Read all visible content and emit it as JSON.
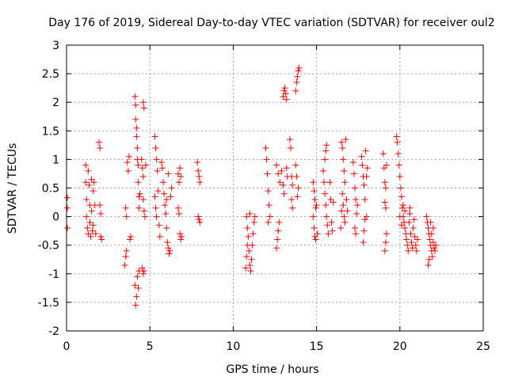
{
  "chart_data": {
    "type": "scatter",
    "title": "Day 176 of 2019, Sidereal Day-to-day VTEC variation (SDTVAR) for receiver oul2",
    "xlabel": "GPS time / hours",
    "ylabel": "SDTVAR / TECUs",
    "xlim": [
      0,
      25
    ],
    "ylim": [
      -2,
      3
    ],
    "xticks": [
      0,
      5,
      10,
      15,
      20,
      25
    ],
    "yticks": [
      -2,
      -1.5,
      -1,
      -0.5,
      0,
      0.5,
      1,
      1.5,
      2,
      2.5,
      3
    ],
    "grid": true,
    "marker": "+",
    "color": "#ff0000",
    "series": [
      {
        "name": "SDTVAR",
        "points": [
          [
            0.05,
            0.33
          ],
          [
            0.05,
            0.15
          ],
          [
            0.05,
            -0.2
          ],
          [
            1.15,
            0.9
          ],
          [
            1.15,
            0.6
          ],
          [
            1.2,
            0.3
          ],
          [
            1.2,
            0.0
          ],
          [
            1.25,
            -0.2
          ],
          [
            1.3,
            -0.3
          ],
          [
            1.3,
            0.8
          ],
          [
            1.35,
            0.55
          ],
          [
            1.4,
            0.2
          ],
          [
            1.4,
            -0.1
          ],
          [
            1.45,
            -0.35
          ],
          [
            1.5,
            0.65
          ],
          [
            1.5,
            0.1
          ],
          [
            1.55,
            -0.25
          ],
          [
            1.6,
            0.45
          ],
          [
            1.6,
            -0.15
          ],
          [
            1.65,
            0.6
          ],
          [
            1.7,
            0.2
          ],
          [
            1.75,
            -0.3
          ],
          [
            1.95,
            1.3
          ],
          [
            2.0,
            1.2
          ],
          [
            2.0,
            0.2
          ],
          [
            2.05,
            0.05
          ],
          [
            2.05,
            -0.35
          ],
          [
            2.1,
            -0.4
          ],
          [
            3.5,
            -0.85
          ],
          [
            3.55,
            -0.7
          ],
          [
            3.6,
            -0.6
          ],
          [
            3.55,
            0.15
          ],
          [
            3.6,
            0.0
          ],
          [
            3.65,
            0.95
          ],
          [
            3.7,
            0.8
          ],
          [
            3.75,
            1.05
          ],
          [
            3.8,
            -0.4
          ],
          [
            3.85,
            -0.35
          ],
          [
            4.1,
            2.1
          ],
          [
            4.15,
            1.95
          ],
          [
            4.15,
            1.7
          ],
          [
            4.2,
            1.55
          ],
          [
            4.2,
            1.4
          ],
          [
            4.25,
            1.2
          ],
          [
            4.25,
            1.0
          ],
          [
            4.3,
            0.9
          ],
          [
            4.3,
            0.6
          ],
          [
            4.35,
            0.35
          ],
          [
            4.35,
            0.15
          ],
          [
            4.4,
            0.4
          ],
          [
            4.1,
            -1.2
          ],
          [
            4.15,
            -1.55
          ],
          [
            4.2,
            -1.4
          ],
          [
            4.25,
            -1.05
          ],
          [
            4.3,
            -1.25
          ],
          [
            4.35,
            -0.95
          ],
          [
            4.55,
            -0.9
          ],
          [
            4.6,
            -1.0
          ],
          [
            4.65,
            -0.95
          ],
          [
            4.6,
            2.0
          ],
          [
            4.65,
            1.9
          ],
          [
            4.5,
            1.0
          ],
          [
            4.55,
            0.85
          ],
          [
            4.6,
            0.7
          ],
          [
            4.6,
            0.3
          ],
          [
            4.65,
            0.1
          ],
          [
            4.7,
            0.0
          ],
          [
            4.75,
            0.9
          ],
          [
            5.3,
            1.4
          ],
          [
            5.35,
            1.2
          ],
          [
            5.4,
            1.0
          ],
          [
            5.45,
            0.8
          ],
          [
            5.5,
            0.45
          ],
          [
            5.3,
            0.35
          ],
          [
            5.35,
            0.15
          ],
          [
            5.4,
            0.0
          ],
          [
            5.55,
            -0.15
          ],
          [
            5.6,
            -0.35
          ],
          [
            5.7,
            0.95
          ],
          [
            5.75,
            0.85
          ],
          [
            5.8,
            0.6
          ],
          [
            5.85,
            0.4
          ],
          [
            5.9,
            0.2
          ],
          [
            5.95,
            0.05
          ],
          [
            6.0,
            -0.2
          ],
          [
            6.05,
            -0.45
          ],
          [
            6.1,
            -0.55
          ],
          [
            6.15,
            -0.65
          ],
          [
            6.2,
            -0.6
          ],
          [
            6.25,
            0.35
          ],
          [
            6.3,
            0.5
          ],
          [
            6.1,
            0.75
          ],
          [
            6.0,
            0.3
          ],
          [
            6.7,
            0.75
          ],
          [
            6.75,
            0.6
          ],
          [
            6.8,
            0.85
          ],
          [
            6.85,
            0.7
          ],
          [
            6.7,
            0.15
          ],
          [
            6.75,
            0.05
          ],
          [
            6.8,
            -0.3
          ],
          [
            6.85,
            -0.4
          ],
          [
            6.9,
            -0.35
          ],
          [
            7.85,
            0.95
          ],
          [
            7.9,
            0.8
          ],
          [
            7.95,
            0.7
          ],
          [
            8.0,
            0.6
          ],
          [
            7.9,
            0.0
          ],
          [
            7.95,
            -0.05
          ],
          [
            8.0,
            -0.1
          ],
          [
            10.75,
            -0.9
          ],
          [
            10.8,
            -0.7
          ],
          [
            10.85,
            -0.5
          ],
          [
            10.8,
            0.0
          ],
          [
            10.85,
            -0.2
          ],
          [
            10.9,
            -0.35
          ],
          [
            10.95,
            -0.6
          ],
          [
            11.0,
            -0.85
          ],
          [
            11.05,
            -0.95
          ],
          [
            11.1,
            -0.75
          ],
          [
            11.15,
            -0.5
          ],
          [
            11.2,
            -0.3
          ],
          [
            11.25,
            -0.1
          ],
          [
            11.3,
            0.0
          ],
          [
            11.0,
            0.05
          ],
          [
            11.95,
            1.2
          ],
          [
            12.0,
            1.0
          ],
          [
            12.05,
            0.75
          ],
          [
            12.1,
            0.45
          ],
          [
            12.15,
            0.2
          ],
          [
            12.2,
            0.0
          ],
          [
            12.1,
            -0.1
          ],
          [
            12.6,
            -0.55
          ],
          [
            12.65,
            -0.4
          ],
          [
            12.7,
            -0.25
          ],
          [
            12.75,
            -0.1
          ],
          [
            12.6,
            0.9
          ],
          [
            12.7,
            0.75
          ],
          [
            12.8,
            0.6
          ],
          [
            12.9,
            0.8
          ],
          [
            13.0,
            0.55
          ],
          [
            13.05,
            0.4
          ],
          [
            13.0,
            2.1
          ],
          [
            13.05,
            2.2
          ],
          [
            13.1,
            2.25
          ],
          [
            13.15,
            2.15
          ],
          [
            13.2,
            2.05
          ],
          [
            13.2,
            0.85
          ],
          [
            13.25,
            0.7
          ],
          [
            13.4,
            1.35
          ],
          [
            13.45,
            1.2
          ],
          [
            13.5,
            0.7
          ],
          [
            13.55,
            0.55
          ],
          [
            13.5,
            0.3
          ],
          [
            13.55,
            0.15
          ],
          [
            13.75,
            0.9
          ],
          [
            13.8,
            0.7
          ],
          [
            13.85,
            0.35
          ],
          [
            13.9,
            0.5
          ],
          [
            13.75,
            2.2
          ],
          [
            13.8,
            2.35
          ],
          [
            13.85,
            2.45
          ],
          [
            13.9,
            2.55
          ],
          [
            13.95,
            2.6
          ],
          [
            14.8,
            0.6
          ],
          [
            14.85,
            0.45
          ],
          [
            14.9,
            0.3
          ],
          [
            14.95,
            0.15
          ],
          [
            14.8,
            0.0
          ],
          [
            14.85,
            -0.2
          ],
          [
            14.9,
            -0.35
          ],
          [
            14.95,
            -0.4
          ],
          [
            15.0,
            0.2
          ],
          [
            15.05,
            -0.3
          ],
          [
            15.4,
            0.8
          ],
          [
            15.45,
            0.6
          ],
          [
            15.5,
            0.4
          ],
          [
            15.55,
            0.2
          ],
          [
            15.6,
            0.0
          ],
          [
            15.65,
            -0.15
          ],
          [
            15.7,
            -0.3
          ],
          [
            15.5,
            1.0
          ],
          [
            15.55,
            1.15
          ],
          [
            15.6,
            1.25
          ],
          [
            15.8,
            0.6
          ],
          [
            15.85,
            0.3
          ],
          [
            15.9,
            -0.1
          ],
          [
            15.95,
            -0.25
          ],
          [
            16.0,
            0.25
          ],
          [
            16.5,
            1.3
          ],
          [
            16.55,
            1.2
          ],
          [
            16.6,
            1.0
          ],
          [
            16.65,
            0.8
          ],
          [
            16.7,
            0.6
          ],
          [
            16.55,
            0.4
          ],
          [
            16.6,
            0.2
          ],
          [
            16.65,
            0.0
          ],
          [
            16.7,
            -0.1
          ],
          [
            16.5,
            0.1
          ],
          [
            16.45,
            -0.2
          ],
          [
            16.75,
            1.35
          ],
          [
            16.8,
            0.3
          ],
          [
            16.85,
            0.1
          ],
          [
            17.2,
            0.95
          ],
          [
            17.25,
            0.75
          ],
          [
            17.3,
            0.5
          ],
          [
            17.35,
            0.3
          ],
          [
            17.4,
            0.05
          ],
          [
            17.3,
            -0.2
          ],
          [
            17.35,
            -0.3
          ],
          [
            17.45,
            0.2
          ],
          [
            17.7,
            1.05
          ],
          [
            17.75,
            0.9
          ],
          [
            17.8,
            0.7
          ],
          [
            17.85,
            0.55
          ],
          [
            17.9,
            0.3
          ],
          [
            17.95,
            1.15
          ],
          [
            18.0,
            0.7
          ],
          [
            17.9,
            -0.05
          ],
          [
            17.85,
            -0.25
          ],
          [
            17.8,
            -0.45
          ],
          [
            18.0,
            0.0
          ],
          [
            18.05,
            0.85
          ],
          [
            19.0,
            1.1
          ],
          [
            19.05,
            0.85
          ],
          [
            19.1,
            0.6
          ],
          [
            19.15,
            0.5
          ],
          [
            19.1,
            0.25
          ],
          [
            19.15,
            0.15
          ],
          [
            19.2,
            -0.3
          ],
          [
            19.15,
            -0.45
          ],
          [
            19.1,
            -0.6
          ],
          [
            19.2,
            0.9
          ],
          [
            19.8,
            1.4
          ],
          [
            19.85,
            1.3
          ],
          [
            19.9,
            1.1
          ],
          [
            19.95,
            0.9
          ],
          [
            20.0,
            0.7
          ],
          [
            20.05,
            0.5
          ],
          [
            20.1,
            0.35
          ],
          [
            20.15,
            0.15
          ],
          [
            20.2,
            0.0
          ],
          [
            20.25,
            -0.1
          ],
          [
            20.3,
            -0.2
          ],
          [
            20.35,
            -0.3
          ],
          [
            20.4,
            -0.4
          ],
          [
            20.45,
            -0.5
          ],
          [
            20.5,
            -0.6
          ],
          [
            20.55,
            -0.1
          ],
          [
            20.6,
            0.05
          ],
          [
            20.3,
            0.1
          ],
          [
            20.2,
            0.2
          ],
          [
            20.1,
            -0.15
          ],
          [
            20.0,
            0.0
          ],
          [
            20.65,
            -0.3
          ],
          [
            20.7,
            -0.45
          ],
          [
            20.75,
            -0.55
          ],
          [
            20.8,
            -0.2
          ],
          [
            20.85,
            -0.05
          ],
          [
            20.9,
            -0.35
          ],
          [
            20.95,
            -0.5
          ],
          [
            21.0,
            -0.6
          ],
          [
            21.05,
            -0.4
          ],
          [
            20.6,
            0.15
          ],
          [
            21.6,
            0.0
          ],
          [
            21.65,
            -0.1
          ],
          [
            21.7,
            -0.2
          ],
          [
            21.75,
            -0.3
          ],
          [
            21.8,
            -0.4
          ],
          [
            21.85,
            -0.5
          ],
          [
            21.9,
            -0.6
          ],
          [
            21.95,
            -0.7
          ],
          [
            21.7,
            -0.85
          ],
          [
            21.75,
            -0.75
          ],
          [
            21.9,
            -0.3
          ],
          [
            22.0,
            -0.45
          ],
          [
            22.05,
            -0.55
          ],
          [
            22.1,
            -0.6
          ],
          [
            22.15,
            -0.5
          ],
          [
            22.0,
            -0.2
          ],
          [
            21.85,
            -0.1
          ]
        ]
      }
    ]
  }
}
